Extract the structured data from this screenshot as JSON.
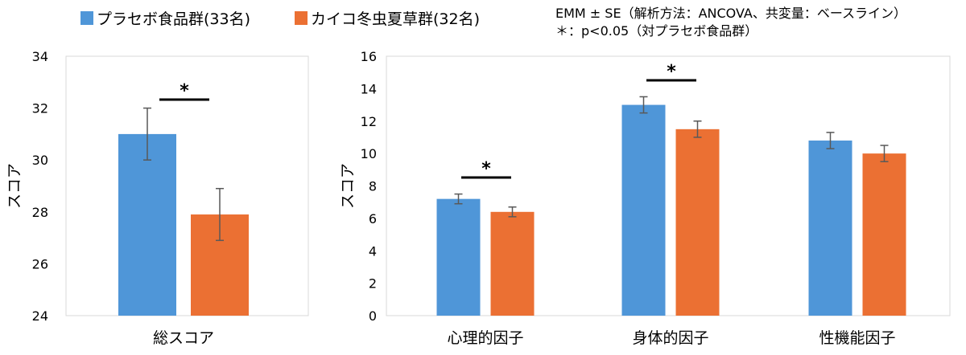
{
  "legend": {
    "series1": "プラセボ食品群(33名)",
    "series2": "カイコ冬虫夏草群(32名)"
  },
  "notes": {
    "line1": "EMM ± SE（解析方法：ANCOVA、共変量：ベースライン）",
    "line2": "＊：p<0.05（対プラセボ食品群）"
  },
  "colors": {
    "series1": "#4f96d8",
    "series2": "#eb7033",
    "error": "#595959"
  },
  "chart_data": [
    {
      "type": "bar",
      "ylabel": "スコア",
      "ylim": [
        24,
        34
      ],
      "yticks": [
        24,
        26,
        28,
        30,
        32,
        34
      ],
      "categories": [
        "総スコア"
      ],
      "series": [
        {
          "name": "プラセボ食品群(33名)",
          "values": [
            31.0
          ],
          "se": [
            1.0
          ]
        },
        {
          "name": "カイコ冬虫夏草群(32名)",
          "values": [
            27.9
          ],
          "se": [
            1.0
          ]
        }
      ],
      "significance": [
        {
          "category": 0,
          "label": "*"
        }
      ]
    },
    {
      "type": "bar",
      "ylabel": "スコア",
      "ylim": [
        0,
        16
      ],
      "yticks": [
        0,
        2,
        4,
        6,
        8,
        10,
        12,
        14,
        16
      ],
      "categories": [
        "心理的因子",
        "身体的因子",
        "性機能因子"
      ],
      "series": [
        {
          "name": "プラセボ食品群(33名)",
          "values": [
            7.2,
            13.0,
            10.8
          ],
          "se": [
            0.3,
            0.5,
            0.5
          ]
        },
        {
          "name": "カイコ冬虫夏草群(32名)",
          "values": [
            6.4,
            11.5,
            10.0
          ],
          "se": [
            0.3,
            0.5,
            0.5
          ]
        }
      ],
      "significance": [
        {
          "category": 0,
          "label": "*"
        },
        {
          "category": 1,
          "label": "*"
        }
      ]
    }
  ]
}
